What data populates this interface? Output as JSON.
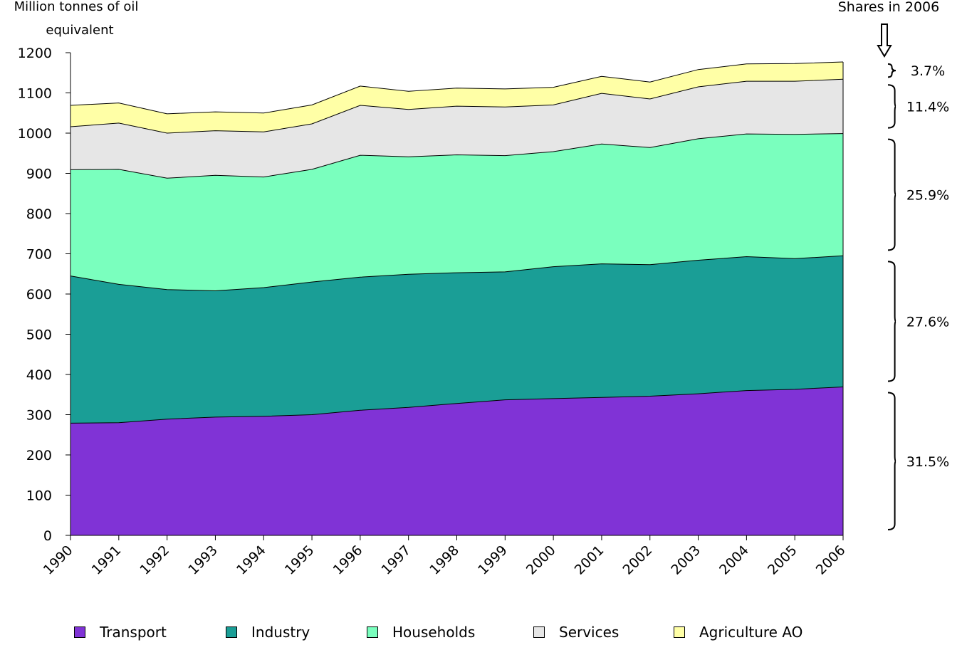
{
  "chart_data": {
    "type": "area",
    "stacked": true,
    "ylabel": "Million tonnes of oil equivalent",
    "annotation_title": "Shares in 2006",
    "x": [
      "1990",
      "1991",
      "1992",
      "1993",
      "1994",
      "1995",
      "1996",
      "1997",
      "1998",
      "1999",
      "2000",
      "2001",
      "2002",
      "2003",
      "2004",
      "2005",
      "2006"
    ],
    "ylim": [
      0,
      1200
    ],
    "yticks": [
      0,
      100,
      200,
      300,
      400,
      500,
      600,
      700,
      800,
      900,
      1000,
      1100,
      1200
    ],
    "grid": false,
    "legend_position": "bottom",
    "series": [
      {
        "name": "Transport",
        "color": "#8033d6",
        "values": [
          279,
          280,
          289,
          294,
          296,
          300,
          311,
          318,
          328,
          337,
          340,
          343,
          346,
          352,
          360,
          363,
          369
        ]
      },
      {
        "name": "Industry",
        "color": "#1a9e96",
        "values": [
          366,
          344,
          322,
          314,
          320,
          330,
          331,
          331,
          325,
          318,
          328,
          332,
          327,
          332,
          333,
          325,
          326
        ]
      },
      {
        "name": "Households",
        "color": "#7affbe",
        "values": [
          264,
          286,
          277,
          287,
          275,
          280,
          303,
          292,
          293,
          289,
          286,
          298,
          291,
          302,
          305,
          309,
          304
        ]
      },
      {
        "name": "Services",
        "color": "#e6e6e6",
        "values": [
          107,
          115,
          112,
          111,
          112,
          113,
          124,
          118,
          121,
          121,
          116,
          126,
          121,
          129,
          131,
          132,
          135
        ]
      },
      {
        "name": "Agriculture AO",
        "color": "#ffffa6",
        "values": [
          53,
          50,
          48,
          47,
          47,
          47,
          48,
          45,
          45,
          45,
          44,
          42,
          42,
          43,
          43,
          44,
          43
        ]
      }
    ],
    "shares_2006": [
      {
        "series": "Agriculture AO",
        "label": "3.7%"
      },
      {
        "series": "Services",
        "label": "11.4%"
      },
      {
        "series": "Households",
        "label": "25.9%"
      },
      {
        "series": "Industry",
        "label": "27.6%"
      },
      {
        "series": "Transport",
        "label": "31.5%"
      }
    ]
  }
}
